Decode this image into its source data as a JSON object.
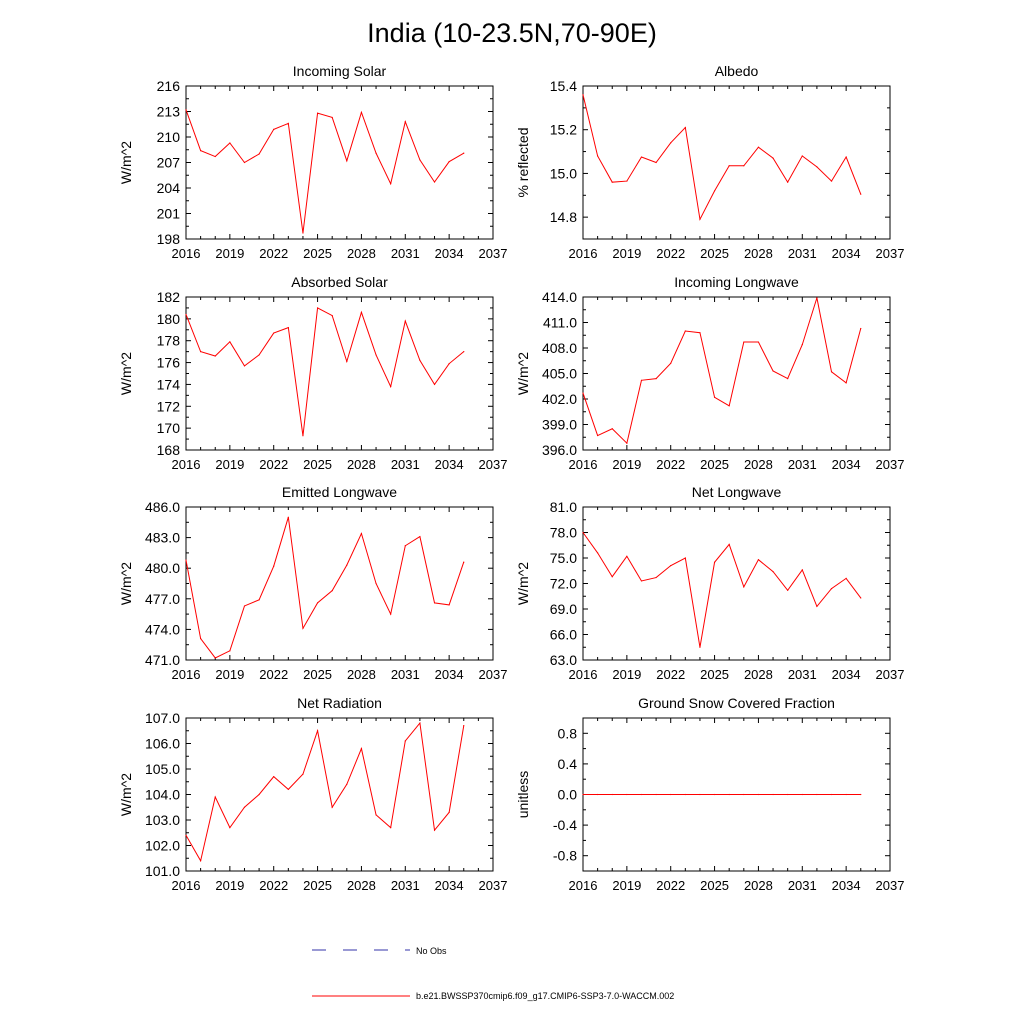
{
  "page_title": "India (10-23.5N,70-90E)",
  "colors": {
    "model_line": "#ff0000",
    "obs_line": "#3333aa",
    "axis": "#000000"
  },
  "legend": {
    "obs_label": "No Obs",
    "model_label": "b.e21.BWSSP370cmip6.f09_g17.CMIP6-SSP3-7.0-WACCM.002"
  },
  "chart_data": [
    {
      "type": "line",
      "title": "Incoming Solar",
      "ylabel": "W/m^2",
      "xlim": [
        2016,
        2037
      ],
      "ylim": [
        198,
        216
      ],
      "xticks": [
        2016,
        2019,
        2022,
        2025,
        2028,
        2031,
        2034,
        2037
      ],
      "xtick_labels": [
        "2016",
        "2019",
        "2022",
        "2025",
        "2028",
        "2031",
        "2034",
        "2037"
      ],
      "yticks": [
        198,
        201,
        204,
        207,
        210,
        213,
        216
      ],
      "ytick_labels": [
        "198",
        "201",
        "204",
        "207",
        "210",
        "213",
        "216"
      ],
      "series": [
        {
          "name": "b.e21.BWSSP370cmip6.f09_g17.CMIP6-SSP3-7.0-WACCM.002",
          "x": [
            2016,
            2017,
            2018,
            2019,
            2020,
            2021,
            2022,
            2023,
            2024,
            2025,
            2026,
            2027,
            2028,
            2029,
            2030,
            2031,
            2032,
            2033,
            2034,
            2035
          ],
          "values": [
            213.2,
            208.4,
            207.7,
            209.3,
            207.0,
            208.0,
            210.9,
            211.6,
            198.7,
            212.8,
            212.3,
            207.2,
            212.9,
            208.1,
            204.5,
            211.8,
            207.3,
            204.7,
            207.1,
            208.1
          ]
        }
      ]
    },
    {
      "type": "line",
      "title": "Albedo",
      "ylabel": "% reflected",
      "xlim": [
        2016,
        2037
      ],
      "ylim": [
        14.7,
        15.4
      ],
      "xticks": [
        2016,
        2019,
        2022,
        2025,
        2028,
        2031,
        2034,
        2037
      ],
      "xtick_labels": [
        "2016",
        "2019",
        "2022",
        "2025",
        "2028",
        "2031",
        "2034",
        "2037"
      ],
      "yticks": [
        14.8,
        15.0,
        15.2,
        15.4
      ],
      "ytick_labels": [
        "14.8",
        "15.0",
        "15.2",
        "15.4"
      ],
      "series": [
        {
          "name": "b.e21.BWSSP370cmip6.f09_g17.CMIP6-SSP3-7.0-WACCM.002",
          "x": [
            2016,
            2017,
            2018,
            2019,
            2020,
            2021,
            2022,
            2023,
            2024,
            2025,
            2026,
            2027,
            2028,
            2029,
            2030,
            2031,
            2032,
            2033,
            2034,
            2035
          ],
          "values": [
            15.36,
            15.08,
            14.96,
            14.965,
            15.075,
            15.05,
            15.14,
            15.21,
            14.79,
            14.92,
            15.035,
            15.035,
            15.12,
            15.07,
            14.96,
            15.08,
            15.03,
            14.965,
            15.075,
            14.905
          ]
        }
      ]
    },
    {
      "type": "line",
      "title": "Absorbed Solar",
      "ylabel": "W/m^2",
      "xlim": [
        2016,
        2037
      ],
      "ylim": [
        168,
        182
      ],
      "xticks": [
        2016,
        2019,
        2022,
        2025,
        2028,
        2031,
        2034,
        2037
      ],
      "xtick_labels": [
        "2016",
        "2019",
        "2022",
        "2025",
        "2028",
        "2031",
        "2034",
        "2037"
      ],
      "yticks": [
        168,
        170,
        172,
        174,
        176,
        178,
        180,
        182
      ],
      "ytick_labels": [
        "168",
        "170",
        "172",
        "174",
        "176",
        "178",
        "180",
        "182"
      ],
      "series": [
        {
          "name": "b.e21.BWSSP370cmip6.f09_g17.CMIP6-SSP3-7.0-WACCM.002",
          "x": [
            2016,
            2017,
            2018,
            2019,
            2020,
            2021,
            2022,
            2023,
            2024,
            2025,
            2026,
            2027,
            2028,
            2029,
            2030,
            2031,
            2032,
            2033,
            2034,
            2035
          ],
          "values": [
            180.4,
            177.0,
            176.6,
            177.9,
            175.7,
            176.7,
            178.7,
            179.2,
            169.3,
            181.0,
            180.3,
            176.1,
            180.6,
            176.7,
            173.8,
            179.8,
            176.2,
            174.0,
            175.9,
            177.0
          ]
        }
      ]
    },
    {
      "type": "line",
      "title": "Incoming Longwave",
      "ylabel": "W/m^2",
      "xlim": [
        2016,
        2037
      ],
      "ylim": [
        396.0,
        414.0
      ],
      "xticks": [
        2016,
        2019,
        2022,
        2025,
        2028,
        2031,
        2034,
        2037
      ],
      "xtick_labels": [
        "2016",
        "2019",
        "2022",
        "2025",
        "2028",
        "2031",
        "2034",
        "2037"
      ],
      "yticks": [
        396,
        399,
        402,
        405,
        408,
        411,
        414
      ],
      "ytick_labels": [
        "396.0",
        "399.0",
        "402.0",
        "405.0",
        "408.0",
        "411.0",
        "414.0"
      ],
      "series": [
        {
          "name": "b.e21.BWSSP370cmip6.f09_g17.CMIP6-SSP3-7.0-WACCM.002",
          "x": [
            2016,
            2017,
            2018,
            2019,
            2020,
            2021,
            2022,
            2023,
            2024,
            2025,
            2026,
            2027,
            2028,
            2029,
            2030,
            2031,
            2032,
            2033,
            2034,
            2035
          ],
          "values": [
            402.7,
            397.7,
            398.5,
            396.8,
            404.2,
            404.4,
            406.2,
            410.0,
            409.8,
            402.2,
            401.2,
            408.7,
            408.7,
            405.3,
            404.4,
            408.4,
            413.9,
            405.2,
            403.9,
            410.3
          ]
        }
      ]
    },
    {
      "type": "line",
      "title": "Emitted Longwave",
      "ylabel": "W/m^2",
      "xlim": [
        2016,
        2037
      ],
      "ylim": [
        471.0,
        486.0
      ],
      "xticks": [
        2016,
        2019,
        2022,
        2025,
        2028,
        2031,
        2034,
        2037
      ],
      "xtick_labels": [
        "2016",
        "2019",
        "2022",
        "2025",
        "2028",
        "2031",
        "2034",
        "2037"
      ],
      "yticks": [
        471,
        474,
        477,
        480,
        483,
        486
      ],
      "ytick_labels": [
        "471.0",
        "474.0",
        "477.0",
        "480.0",
        "483.0",
        "486.0"
      ],
      "series": [
        {
          "name": "b.e21.BWSSP370cmip6.f09_g17.CMIP6-SSP3-7.0-WACCM.002",
          "x": [
            2016,
            2017,
            2018,
            2019,
            2020,
            2021,
            2022,
            2023,
            2024,
            2025,
            2026,
            2027,
            2028,
            2029,
            2030,
            2031,
            2032,
            2033,
            2034,
            2035
          ],
          "values": [
            480.8,
            473.1,
            471.2,
            471.9,
            476.3,
            476.9,
            480.2,
            485.0,
            474.1,
            476.6,
            477.8,
            480.3,
            483.4,
            478.5,
            475.5,
            482.2,
            483.1,
            476.6,
            476.4,
            480.6
          ]
        }
      ]
    },
    {
      "type": "line",
      "title": "Net Longwave",
      "ylabel": "W/m^2",
      "xlim": [
        2016,
        2037
      ],
      "ylim": [
        63.0,
        81.0
      ],
      "xticks": [
        2016,
        2019,
        2022,
        2025,
        2028,
        2031,
        2034,
        2037
      ],
      "xtick_labels": [
        "2016",
        "2019",
        "2022",
        "2025",
        "2028",
        "2031",
        "2034",
        "2037"
      ],
      "yticks": [
        63,
        66,
        69,
        72,
        75,
        78,
        81
      ],
      "ytick_labels": [
        "63.0",
        "66.0",
        "69.0",
        "72.0",
        "75.0",
        "78.0",
        "81.0"
      ],
      "series": [
        {
          "name": "b.e21.BWSSP370cmip6.f09_g17.CMIP6-SSP3-7.0-WACCM.002",
          "x": [
            2016,
            2017,
            2018,
            2019,
            2020,
            2021,
            2022,
            2023,
            2024,
            2025,
            2026,
            2027,
            2028,
            2029,
            2030,
            2031,
            2032,
            2033,
            2034,
            2035
          ],
          "values": [
            78.0,
            75.6,
            72.8,
            75.2,
            72.3,
            72.7,
            74.1,
            75.0,
            64.5,
            74.5,
            76.6,
            71.6,
            74.8,
            73.4,
            71.2,
            73.6,
            69.3,
            71.4,
            72.6,
            70.3
          ]
        }
      ]
    },
    {
      "type": "line",
      "title": "Net Radiation",
      "ylabel": "W/m^2",
      "xlim": [
        2016,
        2037
      ],
      "ylim": [
        101.0,
        107.0
      ],
      "xticks": [
        2016,
        2019,
        2022,
        2025,
        2028,
        2031,
        2034,
        2037
      ],
      "xtick_labels": [
        "2016",
        "2019",
        "2022",
        "2025",
        "2028",
        "2031",
        "2034",
        "2037"
      ],
      "yticks": [
        101,
        102,
        103,
        104,
        105,
        106,
        107
      ],
      "ytick_labels": [
        "101.0",
        "102.0",
        "103.0",
        "104.0",
        "105.0",
        "106.0",
        "107.0"
      ],
      "series": [
        {
          "name": "b.e21.BWSSP370cmip6.f09_g17.CMIP6-SSP3-7.0-WACCM.002",
          "x": [
            2016,
            2017,
            2018,
            2019,
            2020,
            2021,
            2022,
            2023,
            2024,
            2025,
            2026,
            2027,
            2028,
            2029,
            2030,
            2031,
            2032,
            2033,
            2034,
            2035
          ],
          "values": [
            102.4,
            101.4,
            103.9,
            102.7,
            103.5,
            104.0,
            104.7,
            104.2,
            104.8,
            106.5,
            103.5,
            104.4,
            105.8,
            103.2,
            102.7,
            106.1,
            106.8,
            102.6,
            103.3,
            106.7
          ]
        }
      ]
    },
    {
      "type": "line",
      "title": "Ground Snow Covered Fraction",
      "ylabel": "unitless",
      "xlim": [
        2016,
        2037
      ],
      "ylim": [
        -1.0,
        1.0
      ],
      "xticks": [
        2016,
        2019,
        2022,
        2025,
        2028,
        2031,
        2034,
        2037
      ],
      "xtick_labels": [
        "2016",
        "2019",
        "2022",
        "2025",
        "2028",
        "2031",
        "2034",
        "2037"
      ],
      "yticks": [
        -0.8,
        -0.4,
        0.0,
        0.4,
        0.8
      ],
      "ytick_labels": [
        "-0.8",
        "-0.4",
        "0.0",
        "0.4",
        "0.8"
      ],
      "series": [
        {
          "name": "b.e21.BWSSP370cmip6.f09_g17.CMIP6-SSP3-7.0-WACCM.002",
          "x": [
            2016,
            2017,
            2018,
            2019,
            2020,
            2021,
            2022,
            2023,
            2024,
            2025,
            2026,
            2027,
            2028,
            2029,
            2030,
            2031,
            2032,
            2033,
            2034,
            2035
          ],
          "values": [
            0,
            0,
            0,
            0,
            0,
            0,
            0,
            0,
            0,
            0,
            0,
            0,
            0,
            0,
            0,
            0,
            0,
            0,
            0,
            0
          ]
        }
      ]
    }
  ]
}
